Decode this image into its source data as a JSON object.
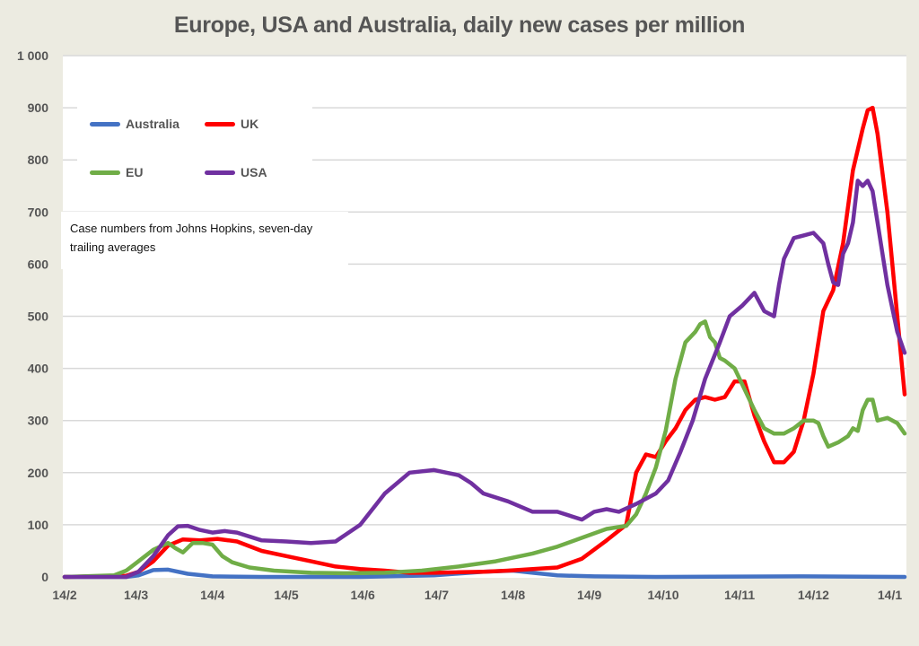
{
  "chart_data": {
    "type": "line",
    "title": "Europe, USA and Australia, daily new cases per million",
    "xlabel": "",
    "ylabel": "",
    "ylim": [
      0,
      1000
    ],
    "yticks": [
      0,
      100,
      200,
      300,
      400,
      500,
      600,
      700,
      800,
      900,
      1000
    ],
    "ytick_labels": [
      "0",
      "100",
      "200",
      "300",
      "400",
      "500",
      "600",
      "700",
      "800",
      "900",
      "1 000"
    ],
    "x_unit": "days since 14/2",
    "xlim": [
      0,
      341
    ],
    "xticks": [
      0,
      29,
      60,
      90,
      121,
      151,
      182,
      213,
      243,
      274,
      304,
      335
    ],
    "xtick_labels": [
      "14/2",
      "14/3",
      "14/4",
      "14/5",
      "14/6",
      "14/7",
      "14/8",
      "14/9",
      "14/10",
      "14/11",
      "14/12",
      "14/1"
    ],
    "grid": true,
    "legend_position": "top-left",
    "note": "Case numbers from Johns Hopkins, seven-day trailing averages",
    "series": [
      {
        "name": "Australia",
        "color": "#4472c4",
        "x": [
          0,
          25,
          30,
          36,
          42,
          50,
          60,
          80,
          120,
          150,
          170,
          182,
          190,
          200,
          215,
          240,
          300,
          341
        ],
        "y": [
          0,
          0,
          3,
          13,
          14,
          6,
          1,
          0,
          0,
          3,
          10,
          12,
          8,
          3,
          1,
          0,
          1,
          0
        ]
      },
      {
        "name": "UK",
        "color": "#ff0000",
        "x": [
          0,
          25,
          30,
          36,
          42,
          48,
          55,
          62,
          70,
          80,
          90,
          100,
          110,
          120,
          130,
          140,
          150,
          160,
          170,
          180,
          190,
          200,
          210,
          220,
          228,
          232,
          236,
          240,
          244,
          248,
          252,
          256,
          260,
          264,
          268,
          272,
          276,
          280,
          284,
          288,
          292,
          296,
          300,
          304,
          308,
          312,
          316,
          320,
          324,
          326,
          328,
          330,
          334,
          338,
          341
        ],
        "y": [
          0,
          2,
          10,
          30,
          60,
          72,
          70,
          73,
          68,
          50,
          40,
          30,
          20,
          15,
          12,
          8,
          8,
          9,
          10,
          12,
          15,
          18,
          35,
          70,
          100,
          200,
          235,
          230,
          260,
          285,
          320,
          340,
          345,
          340,
          345,
          375,
          375,
          310,
          260,
          220,
          220,
          240,
          300,
          390,
          510,
          550,
          640,
          780,
          860,
          895,
          900,
          850,
          700,
          500,
          350
        ]
      },
      {
        "name": "EU",
        "color": "#70ad47",
        "x": [
          0,
          20,
          25,
          30,
          36,
          42,
          45,
          48,
          52,
          56,
          60,
          64,
          68,
          75,
          85,
          100,
          115,
          130,
          145,
          160,
          175,
          190,
          200,
          210,
          220,
          228,
          232,
          236,
          240,
          244,
          248,
          252,
          256,
          258,
          260,
          262,
          264,
          266,
          268,
          272,
          276,
          280,
          284,
          288,
          292,
          296,
          300,
          304,
          306,
          308,
          310,
          314,
          318,
          320,
          322,
          324,
          326,
          328,
          330,
          334,
          338,
          341
        ],
        "y": [
          0,
          3,
          12,
          30,
          52,
          65,
          55,
          47,
          65,
          65,
          62,
          40,
          28,
          18,
          12,
          8,
          7,
          8,
          12,
          20,
          30,
          45,
          58,
          75,
          92,
          98,
          120,
          160,
          210,
          280,
          380,
          450,
          470,
          485,
          490,
          460,
          450,
          420,
          415,
          400,
          360,
          320,
          285,
          275,
          275,
          285,
          300,
          300,
          295,
          270,
          250,
          258,
          270,
          285,
          280,
          320,
          340,
          340,
          300,
          305,
          295,
          275
        ]
      },
      {
        "name": "USA",
        "color": "#7030a0",
        "x": [
          0,
          25,
          30,
          36,
          42,
          46,
          50,
          55,
          60,
          65,
          70,
          80,
          90,
          100,
          110,
          120,
          130,
          140,
          150,
          155,
          160,
          165,
          170,
          180,
          190,
          200,
          210,
          215,
          220,
          225,
          232,
          240,
          245,
          250,
          255,
          260,
          266,
          270,
          275,
          280,
          284,
          288,
          290,
          292,
          296,
          300,
          304,
          306,
          308,
          310,
          312,
          314,
          316,
          318,
          320,
          322,
          324,
          326,
          328,
          330,
          334,
          338,
          341
        ],
        "y": [
          0,
          0,
          10,
          40,
          80,
          97,
          98,
          90,
          85,
          88,
          85,
          70,
          68,
          65,
          68,
          100,
          160,
          200,
          205,
          200,
          195,
          180,
          160,
          145,
          125,
          125,
          110,
          125,
          130,
          125,
          140,
          160,
          185,
          240,
          300,
          380,
          450,
          500,
          520,
          545,
          510,
          500,
          560,
          610,
          650,
          655,
          660,
          650,
          640,
          600,
          565,
          560,
          620,
          640,
          680,
          760,
          750,
          760,
          740,
          680,
          560,
          470,
          430
        ]
      }
    ]
  }
}
